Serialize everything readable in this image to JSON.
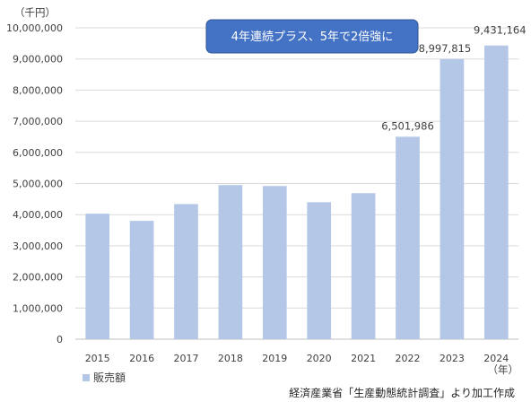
{
  "chart_data": {
    "type": "bar",
    "categories": [
      "2015",
      "2016",
      "2017",
      "2018",
      "2019",
      "2020",
      "2021",
      "2022",
      "2023",
      "2024"
    ],
    "series": [
      {
        "name": "販売額",
        "values": [
          4030000,
          3800000,
          4340000,
          4950000,
          4920000,
          4400000,
          4690000,
          6501986,
          8997815,
          9431164
        ]
      }
    ],
    "data_labels": {
      "7": "6,501,986",
      "8": "8,997,815",
      "9": "9,431,164"
    },
    "ylim": [
      0,
      10000000
    ],
    "yticks": [
      0,
      1000000,
      2000000,
      3000000,
      4000000,
      5000000,
      6000000,
      7000000,
      8000000,
      9000000,
      10000000
    ],
    "ytick_labels": [
      "0",
      "1,000,000",
      "2,000,000",
      "3,000,000",
      "4,000,000",
      "5,000,000",
      "6,000,000",
      "7,000,000",
      "8,000,000",
      "9,000,000",
      "10,000,000"
    ],
    "yunit": "（千円）",
    "xunit": "（年）",
    "grid": true,
    "legend_position": "bottom-left",
    "annotation": "4年連続プラス、5年で2倍強に",
    "source_note": "経済産業省「生産動態統計調査」より加工作成"
  },
  "colors": {
    "bar": "#b4c7e7",
    "grid": "#d9d9d9",
    "axis": "#bfbfbf",
    "callout_fill": "#4472c4",
    "callout_border": "#2f5597"
  }
}
